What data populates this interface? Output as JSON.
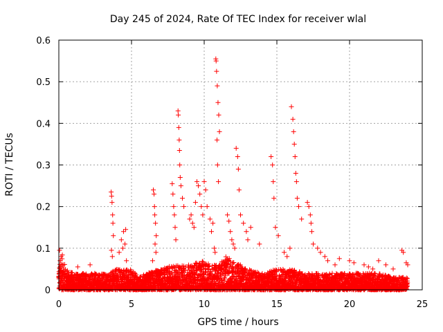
{
  "chart_data": {
    "type": "scatter",
    "title": "Day 245 of 2024, Rate Of TEC Index for receiver wlal",
    "xlabel": "GPS time / hours",
    "ylabel": "ROTI / TECUs",
    "xlim": [
      0,
      25
    ],
    "ylim": [
      0,
      0.6
    ],
    "xticks": [
      0,
      5,
      10,
      15,
      20,
      25
    ],
    "yticks": [
      0,
      0.1,
      0.2,
      0.3,
      0.4,
      0.5,
      0.6
    ],
    "xtick_labels": [
      "0",
      "5",
      "10",
      "15",
      "20",
      "25"
    ],
    "ytick_labels": [
      "0",
      "0.1",
      "0.2",
      "0.3",
      "0.4",
      "0.5",
      "0.6"
    ],
    "grid": true,
    "marker": "+",
    "color": "#ff0000",
    "background_envelope": {
      "x": [
        0,
        0.2,
        0.5,
        1,
        2,
        3,
        3.5,
        4,
        5,
        5.5,
        6,
        7,
        8,
        9,
        10,
        10.5,
        11,
        11.5,
        12,
        13,
        14,
        15,
        16,
        17,
        18,
        19,
        20,
        21,
        22,
        23,
        24
      ],
      "y": [
        0.06,
        0.09,
        0.05,
        0.04,
        0.04,
        0.04,
        0.04,
        0.05,
        0.05,
        0.03,
        0.04,
        0.05,
        0.06,
        0.06,
        0.07,
        0.06,
        0.06,
        0.08,
        0.07,
        0.05,
        0.04,
        0.05,
        0.05,
        0.04,
        0.04,
        0.04,
        0.04,
        0.04,
        0.04,
        0.03,
        0.03
      ]
    },
    "series": [
      {
        "name": "ROTI",
        "x": [
          0.05,
          0.1,
          0.15,
          0.3,
          1.3,
          2.15,
          3.6,
          3.63,
          3.66,
          3.7,
          3.72,
          3.75,
          3.62,
          3.68,
          4.15,
          4.3,
          4.45,
          4.6,
          4.4,
          4.55,
          4.65,
          6.5,
          6.55,
          6.58,
          6.6,
          6.65,
          6.7,
          6.62,
          6.68,
          6.45,
          7.8,
          7.85,
          7.9,
          7.95,
          8.0,
          8.05,
          8.2,
          8.22,
          8.25,
          8.28,
          8.3,
          8.32,
          8.35,
          8.4,
          8.5,
          8.6,
          9.0,
          9.1,
          9.2,
          9.3,
          9.4,
          9.5,
          9.6,
          9.7,
          9.8,
          9.9,
          10.0,
          10.1,
          10.2,
          10.4,
          10.5,
          10.6,
          10.7,
          10.75,
          10.8,
          10.82,
          10.85,
          10.9,
          10.95,
          11.0,
          11.05,
          10.88,
          10.92,
          10.98,
          11.6,
          11.7,
          11.8,
          11.9,
          12.0,
          12.1,
          12.2,
          12.3,
          12.35,
          12.4,
          12.5,
          12.7,
          12.9,
          13.0,
          13.2,
          13.8,
          14.6,
          14.7,
          14.75,
          14.8,
          14.9,
          15.1,
          15.5,
          15.7,
          15.9,
          16.0,
          16.1,
          16.15,
          16.2,
          16.25,
          16.3,
          16.35,
          16.4,
          16.5,
          16.7,
          17.1,
          17.2,
          17.3,
          17.35,
          17.4,
          17.5,
          17.8,
          18.0,
          18.3,
          18.5,
          19.0,
          19.3,
          20.0,
          20.3,
          21.0,
          21.3,
          21.6,
          22.0,
          22.5,
          23.0,
          23.6,
          23.7,
          23.9,
          24.0
        ],
        "y": [
          0.095,
          0.07,
          0.08,
          0.06,
          0.055,
          0.06,
          0.235,
          0.225,
          0.21,
          0.18,
          0.16,
          0.13,
          0.095,
          0.08,
          0.09,
          0.12,
          0.14,
          0.145,
          0.1,
          0.11,
          0.07,
          0.24,
          0.23,
          0.2,
          0.18,
          0.16,
          0.13,
          0.11,
          0.09,
          0.07,
          0.255,
          0.23,
          0.2,
          0.18,
          0.15,
          0.12,
          0.43,
          0.42,
          0.39,
          0.36,
          0.335,
          0.3,
          0.27,
          0.25,
          0.22,
          0.2,
          0.17,
          0.18,
          0.16,
          0.15,
          0.21,
          0.26,
          0.25,
          0.23,
          0.2,
          0.18,
          0.26,
          0.24,
          0.2,
          0.17,
          0.14,
          0.16,
          0.1,
          0.09,
          0.555,
          0.55,
          0.525,
          0.49,
          0.45,
          0.42,
          0.38,
          0.36,
          0.3,
          0.26,
          0.18,
          0.165,
          0.14,
          0.12,
          0.11,
          0.1,
          0.34,
          0.32,
          0.29,
          0.24,
          0.18,
          0.16,
          0.14,
          0.12,
          0.15,
          0.11,
          0.32,
          0.3,
          0.26,
          0.22,
          0.15,
          0.13,
          0.09,
          0.08,
          0.1,
          0.44,
          0.41,
          0.38,
          0.35,
          0.32,
          0.28,
          0.26,
          0.22,
          0.2,
          0.17,
          0.21,
          0.2,
          0.18,
          0.16,
          0.14,
          0.11,
          0.1,
          0.09,
          0.08,
          0.07,
          0.06,
          0.075,
          0.07,
          0.065,
          0.06,
          0.055,
          0.05,
          0.07,
          0.06,
          0.05,
          0.095,
          0.09,
          0.065,
          0.06
        ]
      }
    ]
  }
}
